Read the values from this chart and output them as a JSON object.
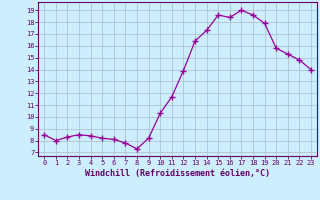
{
  "hours": [
    0,
    1,
    2,
    3,
    4,
    5,
    6,
    7,
    8,
    9,
    10,
    11,
    12,
    13,
    14,
    15,
    16,
    17,
    18,
    19,
    20,
    21,
    22,
    23
  ],
  "values": [
    8.5,
    8.0,
    8.3,
    8.5,
    8.4,
    8.2,
    8.1,
    7.8,
    7.3,
    8.2,
    10.3,
    11.7,
    13.9,
    16.4,
    17.3,
    18.6,
    18.4,
    19.0,
    18.6,
    17.9,
    15.8,
    15.3,
    14.8,
    14.0
  ],
  "line_color": "#990099",
  "marker": "+",
  "bg_color": "#cceeff",
  "grid_color": "#aabbcc",
  "xlabel": "Windchill (Refroidissement éolien,°C)",
  "ylabel_ticks": [
    7,
    8,
    9,
    10,
    11,
    12,
    13,
    14,
    15,
    16,
    17,
    18,
    19
  ],
  "ylim": [
    6.7,
    19.7
  ],
  "xlim": [
    -0.5,
    23.5
  ],
  "axis_color": "#660066",
  "tick_color": "#660066"
}
